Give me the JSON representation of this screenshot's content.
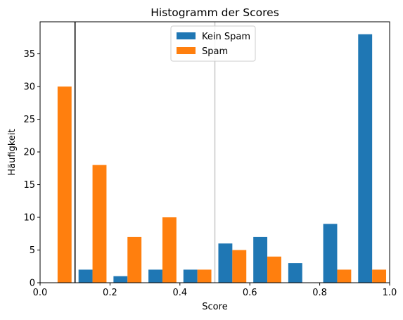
{
  "chart_data": {
    "type": "bar",
    "title": "Histogramm der Scores",
    "xlabel": "Score",
    "ylabel": "Häufigkeit",
    "xlim": [
      0.0,
      1.0
    ],
    "ylim": [
      0,
      39.9
    ],
    "xticks": [
      "0.0",
      "0.2",
      "0.4",
      "0.6",
      "0.8",
      "1.0"
    ],
    "xtick_values": [
      0.0,
      0.2,
      0.4,
      0.6,
      0.8,
      1.0
    ],
    "yticks": [
      "0",
      "5",
      "10",
      "15",
      "20",
      "25",
      "30",
      "35"
    ],
    "ytick_values": [
      0,
      5,
      10,
      15,
      20,
      25,
      30,
      35
    ],
    "bin_edges": [
      0.0,
      0.1,
      0.2,
      0.3,
      0.4,
      0.5,
      0.6,
      0.7,
      0.8,
      0.9,
      1.0
    ],
    "series": [
      {
        "name": "Kein Spam",
        "color": "#1f77b4",
        "values": [
          0,
          2,
          1,
          2,
          2,
          6,
          7,
          3,
          9,
          38
        ]
      },
      {
        "name": "Spam",
        "color": "#ff7f0e",
        "values": [
          30,
          18,
          7,
          10,
          2,
          5,
          4,
          0,
          2,
          2
        ]
      }
    ],
    "reference_lines": [
      {
        "x": 0.1,
        "color": "#000000"
      },
      {
        "x": 0.5,
        "color": "#c8c8c8"
      }
    ],
    "grid": false,
    "legend_position": "upper-center"
  }
}
